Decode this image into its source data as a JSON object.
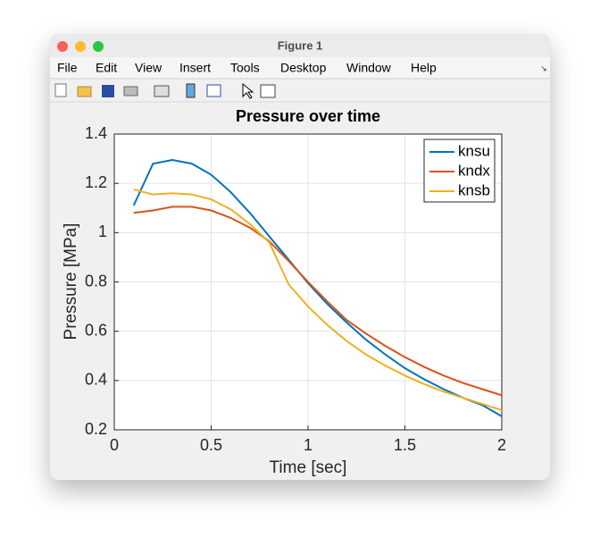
{
  "window": {
    "title": "Figure 1",
    "menu": [
      "File",
      "Edit",
      "View",
      "Insert",
      "Tools",
      "Desktop",
      "Window",
      "Help"
    ]
  },
  "chart_data": {
    "type": "line",
    "title": "Pressure over time",
    "x_label": "Time [sec]",
    "y_label": "Pressure [MPa]",
    "x": [
      0.1,
      0.2,
      0.3,
      0.4,
      0.5,
      0.6,
      0.7,
      0.8,
      0.9,
      1.0,
      1.1,
      1.2,
      1.3,
      1.4,
      1.5,
      1.6,
      1.7,
      1.8,
      1.9,
      2.0
    ],
    "series": [
      {
        "name": "knsu",
        "color": "#0072BD",
        "values": [
          1.11,
          1.28,
          1.295,
          1.28,
          1.235,
          1.165,
          1.08,
          0.985,
          0.89,
          0.795,
          0.71,
          0.635,
          0.565,
          0.505,
          0.45,
          0.405,
          0.365,
          0.33,
          0.3,
          0.255
        ]
      },
      {
        "name": "kndx",
        "color": "#D95319",
        "values": [
          1.08,
          1.09,
          1.105,
          1.105,
          1.09,
          1.06,
          1.02,
          0.965,
          0.885,
          0.8,
          0.72,
          0.645,
          0.59,
          0.54,
          0.495,
          0.455,
          0.42,
          0.39,
          0.365,
          0.34
        ]
      },
      {
        "name": "knsb",
        "color": "#EDB120",
        "values": [
          1.175,
          1.155,
          1.16,
          1.155,
          1.135,
          1.095,
          1.035,
          0.96,
          0.79,
          0.7,
          0.625,
          0.56,
          0.505,
          0.46,
          0.42,
          0.385,
          0.355,
          0.33,
          0.305,
          0.28
        ]
      }
    ],
    "xlim": [
      0,
      2
    ],
    "ylim": [
      0.2,
      1.4
    ],
    "xticks": [
      0,
      0.5,
      1,
      1.5,
      2
    ],
    "yticks": [
      0.2,
      0.4,
      0.6,
      0.8,
      1,
      1.2,
      1.4
    ],
    "grid": true,
    "legend_position": "northeast"
  }
}
